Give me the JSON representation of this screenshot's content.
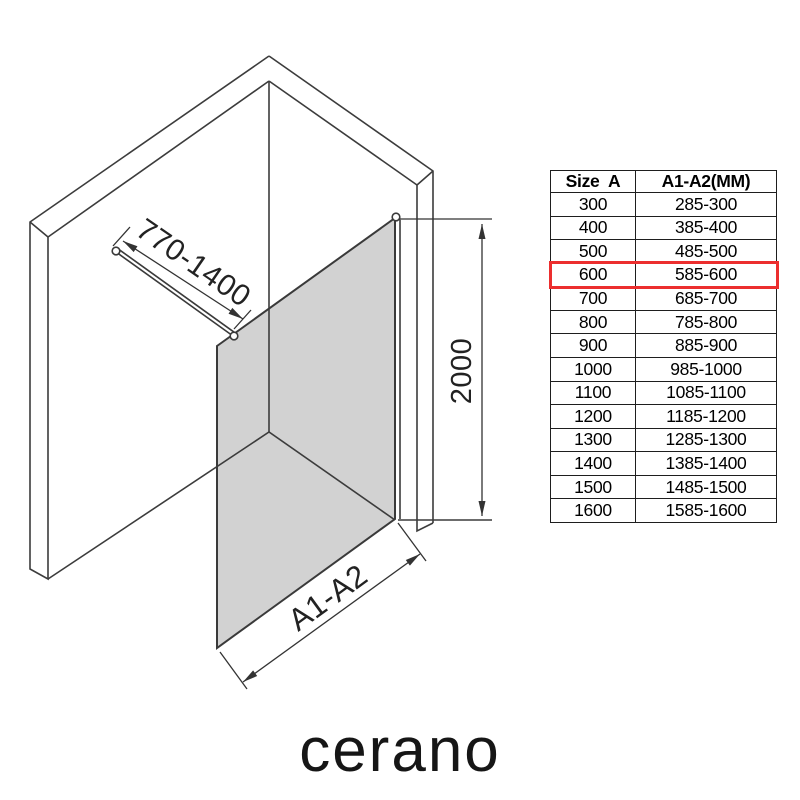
{
  "diagram": {
    "dim_bar": "770-1400",
    "dim_height": "2000",
    "dim_width": "A1-A2"
  },
  "table": {
    "headers": [
      "Size  A",
      "A1-A2(MM)"
    ],
    "rows": [
      [
        "300",
        "285-300"
      ],
      [
        "400",
        "385-400"
      ],
      [
        "500",
        "485-500"
      ],
      [
        "600",
        "585-600"
      ],
      [
        "700",
        "685-700"
      ],
      [
        "800",
        "785-800"
      ],
      [
        "900",
        "885-900"
      ],
      [
        "1000",
        "985-1000"
      ],
      [
        "1100",
        "1085-1100"
      ],
      [
        "1200",
        "1185-1200"
      ],
      [
        "1300",
        "1285-1300"
      ],
      [
        "1400",
        "1385-1400"
      ],
      [
        "1500",
        "1485-1500"
      ],
      [
        "1600",
        "1585-1600"
      ]
    ],
    "highlighted_row": "600"
  },
  "brand": {
    "logo": "cerano"
  },
  "colors": {
    "line": "#3c3c3c",
    "glass_fill": "#d2d2d2",
    "highlight": "#ec2e2e"
  }
}
